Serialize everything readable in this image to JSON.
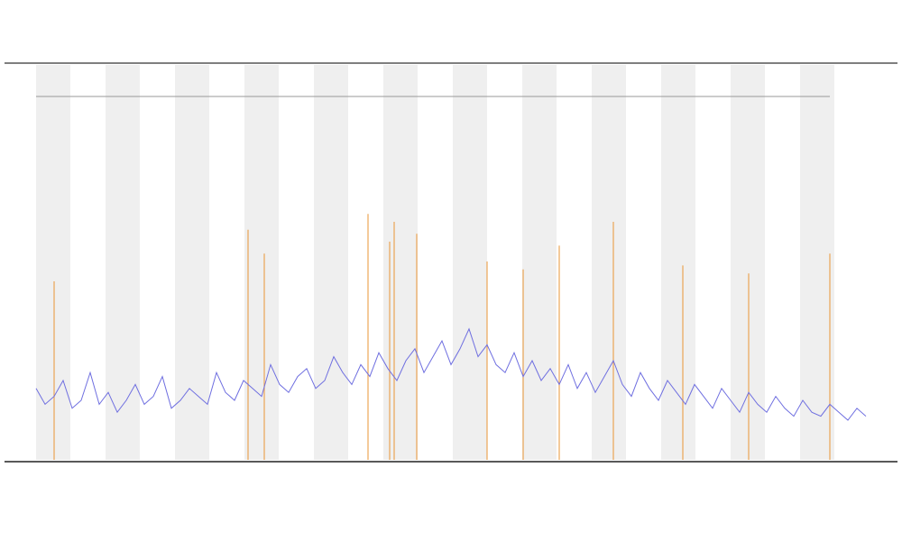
{
  "chart_data": {
    "type": "line",
    "x": [
      0,
      1,
      2,
      3,
      4,
      5,
      6,
      7,
      8,
      9,
      10,
      11,
      12,
      13,
      14,
      15,
      16,
      17,
      18,
      19,
      20,
      21,
      22,
      23,
      24,
      25,
      26,
      27,
      28,
      29,
      30,
      31,
      32,
      33,
      34,
      35,
      36,
      37,
      38,
      39,
      40,
      41,
      42,
      43,
      44,
      45,
      46,
      47,
      48,
      49,
      50,
      51,
      52,
      53,
      54,
      55,
      56,
      57,
      58,
      59,
      60,
      61,
      62,
      63,
      64,
      65,
      66,
      67,
      68,
      69,
      70,
      71,
      72,
      73,
      74,
      75,
      76,
      77,
      78,
      79,
      80,
      81,
      82,
      83,
      84,
      85,
      86,
      87,
      88,
      89,
      90,
      91,
      92
    ],
    "values": [
      18,
      14,
      16,
      20,
      13,
      15,
      22,
      14,
      17,
      12,
      15,
      19,
      14,
      16,
      21,
      13,
      15,
      18,
      16,
      14,
      22,
      17,
      15,
      20,
      18,
      16,
      24,
      19,
      17,
      21,
      23,
      18,
      20,
      26,
      22,
      19,
      24,
      21,
      27,
      23,
      20,
      25,
      28,
      22,
      26,
      30,
      24,
      28,
      33,
      26,
      29,
      24,
      22,
      27,
      21,
      25,
      20,
      23,
      19,
      24,
      18,
      22,
      17,
      21,
      25,
      19,
      16,
      22,
      18,
      15,
      20,
      17,
      14,
      19,
      16,
      13,
      18,
      15,
      12,
      17,
      14,
      12,
      16,
      13,
      11,
      15,
      12,
      11,
      14,
      12,
      10,
      13,
      11
    ],
    "color": "#6f6fe0",
    "spike_x": [
      2,
      23.5,
      25.3,
      36.8,
      39.2,
      39.7,
      42.2,
      50,
      54,
      58,
      64,
      71.7,
      79,
      88
    ],
    "spike_values": [
      45,
      58,
      52,
      62,
      55,
      60,
      57,
      50,
      48,
      54,
      60,
      49,
      47,
      52
    ],
    "spike_color": "#e8922e",
    "xlim": [
      0,
      92
    ],
    "ylim": [
      0,
      100
    ]
  }
}
